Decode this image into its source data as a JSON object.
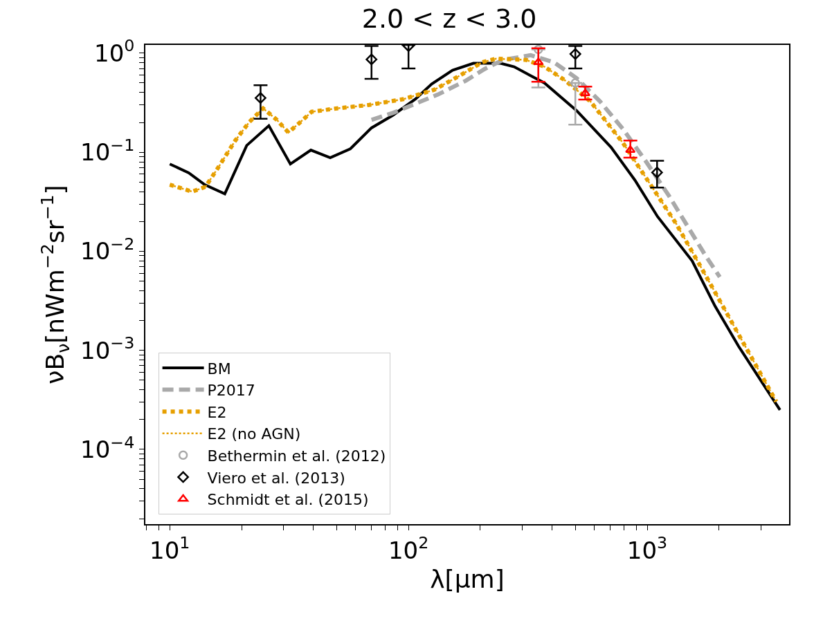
{
  "chart_data": {
    "type": "line",
    "title": "2.0 < z < 3.0",
    "xlabel": "λ[μm]",
    "ylabel": "νB$_{ν}$[nWm$^{−2}$sr$^{−1}$]",
    "log": "xy",
    "grid": false,
    "legend": "bottom left",
    "xlim": [
      7.9,
      3930
    ],
    "ylim": [
      1.76e-05,
      1.21
    ],
    "xticks": [
      {
        "value": 10,
        "label": "10$^{1}$"
      },
      {
        "value": 100,
        "label": "10$^{2}$"
      },
      {
        "value": 1000,
        "label": "10$^{3}$"
      },
      {
        "value": 8,
        "label": null
      },
      {
        "value": 9,
        "label": null
      },
      {
        "value": 20,
        "label": null
      },
      {
        "value": 30,
        "label": null
      },
      {
        "value": 40,
        "label": null
      },
      {
        "value": 50,
        "label": null
      },
      {
        "value": 60,
        "label": null
      },
      {
        "value": 70,
        "label": null
      },
      {
        "value": 80,
        "label": null
      },
      {
        "value": 90,
        "label": null
      },
      {
        "value": 200,
        "label": null
      },
      {
        "value": 300,
        "label": null
      },
      {
        "value": 400,
        "label": null
      },
      {
        "value": 500,
        "label": null
      },
      {
        "value": 600,
        "label": null
      },
      {
        "value": 700,
        "label": null
      },
      {
        "value": 800,
        "label": null
      },
      {
        "value": 900,
        "label": null
      },
      {
        "value": 2000,
        "label": null
      },
      {
        "value": 3000,
        "label": null
      }
    ],
    "yticks": [
      {
        "value": 1,
        "label": "10$^{0}$"
      },
      {
        "value": 0.1,
        "label": "10$^{−1}$"
      },
      {
        "value": 0.01,
        "label": "10$^{−2}$"
      },
      {
        "value": 0.001,
        "label": "10$^{−3}$"
      },
      {
        "value": 0.0001,
        "label": "10$^{−4}$"
      },
      {
        "value": 2e-05,
        "label": null
      },
      {
        "value": 3e-05,
        "label": null
      },
      {
        "value": 4e-05,
        "label": null
      },
      {
        "value": 5e-05,
        "label": null
      },
      {
        "value": 6e-05,
        "label": null
      },
      {
        "value": 7e-05,
        "label": null
      },
      {
        "value": 8e-05,
        "label": null
      },
      {
        "value": 9e-05,
        "label": null
      },
      {
        "value": 0.0002,
        "label": null
      },
      {
        "value": 0.0003,
        "label": null
      },
      {
        "value": 0.0004,
        "label": null
      },
      {
        "value": 0.0005,
        "label": null
      },
      {
        "value": 0.0006,
        "label": null
      },
      {
        "value": 0.0007,
        "label": null
      },
      {
        "value": 0.0008,
        "label": null
      },
      {
        "value": 0.0009,
        "label": null
      },
      {
        "value": 0.002,
        "label": null
      },
      {
        "value": 0.003,
        "label": null
      },
      {
        "value": 0.004,
        "label": null
      },
      {
        "value": 0.005,
        "label": null
      },
      {
        "value": 0.006,
        "label": null
      },
      {
        "value": 0.007,
        "label": null
      },
      {
        "value": 0.008,
        "label": null
      },
      {
        "value": 0.009,
        "label": null
      },
      {
        "value": 0.02,
        "label": null
      },
      {
        "value": 0.03,
        "label": null
      },
      {
        "value": 0.04,
        "label": null
      },
      {
        "value": 0.05,
        "label": null
      },
      {
        "value": 0.06,
        "label": null
      },
      {
        "value": 0.07,
        "label": null
      },
      {
        "value": 0.08,
        "label": null
      },
      {
        "value": 0.09,
        "label": null
      },
      {
        "value": 0.2,
        "label": null
      },
      {
        "value": 0.3,
        "label": null
      },
      {
        "value": 0.4,
        "label": null
      },
      {
        "value": 0.5,
        "label": null
      },
      {
        "value": 0.6,
        "label": null
      },
      {
        "value": 0.7,
        "label": null
      },
      {
        "value": 0.8,
        "label": null
      },
      {
        "value": 0.9,
        "label": null
      }
    ],
    "series": [
      {
        "name": "BM",
        "color": "#000000",
        "line_style": "solid",
        "marker": "none",
        "x": [
          10,
          12,
          14,
          17,
          21,
          26,
          32,
          39,
          47,
          57,
          70,
          86,
          107,
          125,
          153,
          187,
          243,
          277,
          371,
          506,
          706,
          887,
          1105,
          1543,
          1923,
          2414,
          3600
        ],
        "values": [
          0.076,
          0.062,
          0.047,
          0.038,
          0.117,
          0.185,
          0.076,
          0.105,
          0.088,
          0.108,
          0.176,
          0.236,
          0.344,
          0.487,
          0.672,
          0.789,
          0.789,
          0.728,
          0.5,
          0.263,
          0.112,
          0.0525,
          0.0224,
          0.008,
          0.0028,
          0.0011,
          0.00025
        ]
      },
      {
        "name": "P2017",
        "color": "#a9a9a9",
        "line_style": "dashed",
        "marker": "none",
        "x": [
          70,
          86,
          107,
          133,
          174,
          208,
          249,
          325,
          406,
          506,
          634,
          792,
          987,
          1236,
          1762,
          2014
        ],
        "values": [
          0.212,
          0.249,
          0.309,
          0.383,
          0.528,
          0.69,
          0.855,
          0.953,
          0.811,
          0.56,
          0.326,
          0.171,
          0.081,
          0.036,
          0.0089,
          0.0055
        ]
      },
      {
        "name": "E2",
        "color": "#e69f00",
        "line_style": "dotted",
        "marker": "none",
        "x": [
          10,
          12.4,
          14.1,
          16.1,
          18.8,
          21.5,
          24.6,
          28.1,
          31.4,
          35.2,
          39.3,
          50.2,
          68.4,
          95.5,
          128,
          163,
          204,
          233,
          311,
          372,
          454,
          578,
          677,
          792,
          987,
          1322,
          1684,
          2109,
          2573,
          3472
        ],
        "values": [
          0.047,
          0.04,
          0.0447,
          0.0725,
          0.131,
          0.201,
          0.277,
          0.212,
          0.158,
          0.201,
          0.256,
          0.277,
          0.3,
          0.344,
          0.426,
          0.588,
          0.811,
          0.879,
          0.855,
          0.728,
          0.528,
          0.326,
          0.201,
          0.124,
          0.0554,
          0.019,
          0.00683,
          0.0026,
          0.0011,
          0.000304
        ]
      },
      {
        "name": "E2 (no AGN)",
        "color": "#e69f00",
        "line_style": "dotted",
        "marker": "none",
        "x": [
          10,
          12.4,
          14.1,
          16.1,
          18.8,
          21.5,
          24.6,
          28.1,
          31.4,
          35.2,
          39.3,
          50.2,
          68.4,
          95.5,
          128,
          163,
          204,
          233,
          311,
          372,
          454,
          578,
          677,
          792,
          987,
          1322,
          1684,
          2109,
          2573,
          3472
        ],
        "values": [
          0.047,
          0.04,
          0.0447,
          0.0725,
          0.131,
          0.201,
          0.277,
          0.212,
          0.158,
          0.201,
          0.256,
          0.277,
          0.3,
          0.344,
          0.426,
          0.588,
          0.811,
          0.879,
          0.855,
          0.728,
          0.528,
          0.326,
          0.201,
          0.124,
          0.0554,
          0.019,
          0.00683,
          0.0026,
          0.0011,
          0.000304
        ]
      },
      {
        "name": "Bethermin et al. (2012)",
        "type": "scatter",
        "color": "#a9a9a9",
        "marker": "circle",
        "x": [
          350,
          500
        ],
        "values": [
          1.09,
          0.5
        ],
        "errors": [
          [
            0.45,
            1.09
          ],
          [
            0.19,
            0.5
          ]
        ]
      },
      {
        "name": "Viero et al. (2013)",
        "type": "scatter",
        "color": "#000000",
        "marker": "diamond",
        "x": [
          24,
          70,
          100,
          500,
          1100
        ],
        "values": [
          0.353,
          0.865,
          1.18,
          0.98,
          0.0624
        ],
        "errors": [
          [
            0.218,
            0.475
          ],
          [
            0.551,
            1.18
          ],
          [
            0.7,
            1.21
          ],
          [
            0.7,
            1.18
          ],
          [
            0.044,
            0.082
          ]
        ]
      },
      {
        "name": "Schmidt et al. (2015)",
        "type": "scatter",
        "color": "#ff0000",
        "marker": "triangle",
        "x": [
          350,
          550,
          850
        ],
        "values": [
          0.81,
          0.393,
          0.105
        ],
        "errors": [
          [
            0.514,
            1.12
          ],
          [
            0.34,
            0.46
          ],
          [
            0.088,
            0.131
          ]
        ]
      }
    ]
  }
}
